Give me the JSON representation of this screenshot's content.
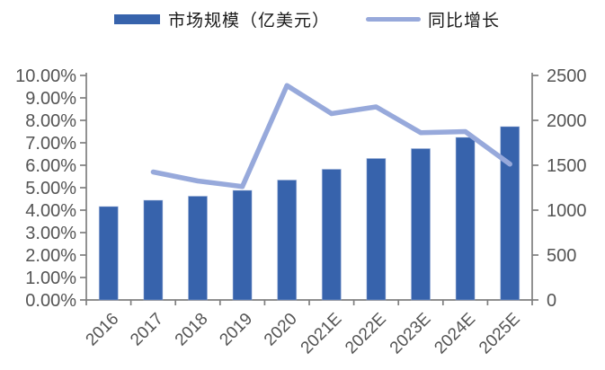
{
  "chart_data": {
    "type": "combo",
    "title": "",
    "categories": [
      "2016",
      "2017",
      "2018",
      "2019",
      "2020",
      "2021E",
      "2022E",
      "2023E",
      "2024E",
      "2025E"
    ],
    "series": [
      {
        "name": "市场规模（亿美元）",
        "type": "bar",
        "axis": "right",
        "color": "#3763AC",
        "values": [
          1040,
          1110,
          1155,
          1220,
          1335,
          1455,
          1575,
          1685,
          1810,
          1930
        ]
      },
      {
        "name": "同比增长",
        "type": "line",
        "axis": "left",
        "unit": "%",
        "color": "#97A9DB",
        "values": [
          null,
          5.7,
          5.3,
          5.05,
          9.55,
          8.3,
          8.6,
          7.45,
          7.5,
          6.05
        ]
      }
    ],
    "left_axis": {
      "min": 0,
      "max": 10,
      "unit": "%",
      "tick_labels": [
        "0.00%",
        "1.00%",
        "2.00%",
        "3.00%",
        "4.00%",
        "5.00%",
        "6.00%",
        "7.00%",
        "8.00%",
        "9.00%",
        "10.00%"
      ]
    },
    "right_axis": {
      "min": 0,
      "max": 2500,
      "tick_labels": [
        "0",
        "500",
        "1000",
        "1500",
        "2000",
        "2500"
      ]
    },
    "grid": false,
    "legend_position": "top",
    "colors": {
      "axis_line": "#7F7F7F",
      "tick_label": "#545454",
      "legend_text": "#1A1A1A",
      "background": "#FFFFFF"
    }
  }
}
